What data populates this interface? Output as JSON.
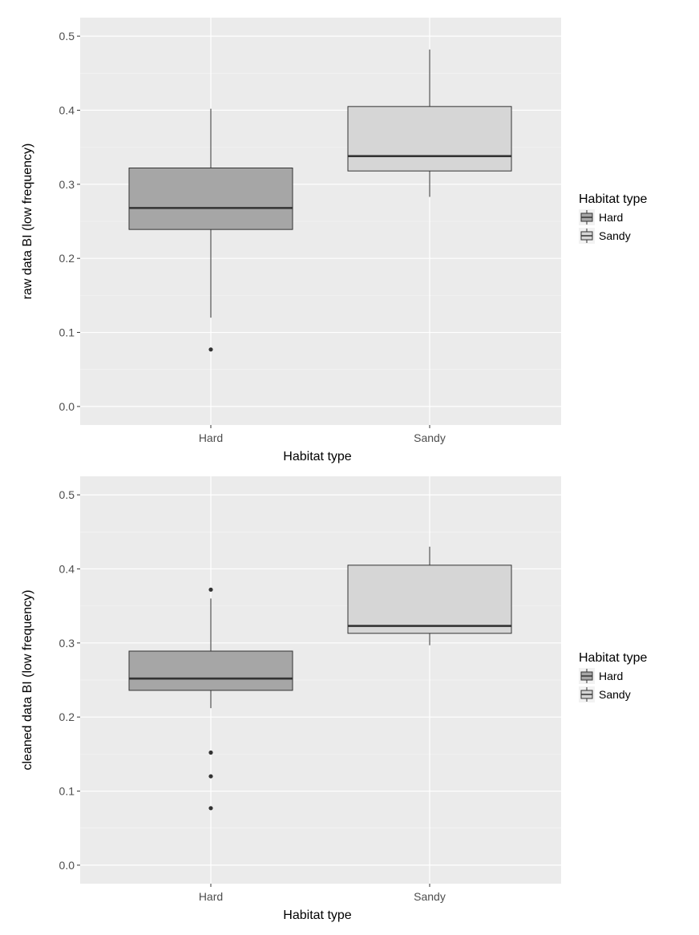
{
  "chart_data": [
    {
      "type": "boxplot",
      "xlabel": "Habitat type",
      "ylabel": "raw data BI (low frequency)",
      "ylim": [
        -0.025,
        0.525
      ],
      "yticks": [
        "0.0",
        "0.1",
        "0.2",
        "0.3",
        "0.4",
        "0.5"
      ],
      "ytick_values": [
        0,
        0.1,
        0.2,
        0.3,
        0.4,
        0.5
      ],
      "categories": [
        "Hard",
        "Sandy"
      ],
      "legend": {
        "title": "Habitat type",
        "position": "right",
        "entries": [
          "Hard",
          "Sandy"
        ]
      },
      "grid": true,
      "boxes": [
        {
          "category": "Hard",
          "fill": "#a6a6a6",
          "whisker_low": 0.12,
          "q1": 0.239,
          "median": 0.268,
          "q3": 0.322,
          "whisker_high": 0.402,
          "outliers": [
            0.077
          ]
        },
        {
          "category": "Sandy",
          "fill": "#d6d6d6",
          "whisker_low": 0.283,
          "q1": 0.318,
          "median": 0.338,
          "q3": 0.405,
          "whisker_high": 0.482,
          "outliers": []
        }
      ]
    },
    {
      "type": "boxplot",
      "xlabel": "Habitat type",
      "ylabel": "cleaned data BI (low frequency)",
      "ylim": [
        -0.025,
        0.525
      ],
      "yticks": [
        "0.0",
        "0.1",
        "0.2",
        "0.3",
        "0.4",
        "0.5"
      ],
      "ytick_values": [
        0,
        0.1,
        0.2,
        0.3,
        0.4,
        0.5
      ],
      "categories": [
        "Hard",
        "Sandy"
      ],
      "legend": {
        "title": "Habitat type",
        "position": "right",
        "entries": [
          "Hard",
          "Sandy"
        ]
      },
      "grid": true,
      "boxes": [
        {
          "category": "Hard",
          "fill": "#a6a6a6",
          "whisker_low": 0.212,
          "q1": 0.236,
          "median": 0.252,
          "q3": 0.289,
          "whisker_high": 0.36,
          "outliers": [
            0.372,
            0.152,
            0.12,
            0.077
          ]
        },
        {
          "category": "Sandy",
          "fill": "#d6d6d6",
          "whisker_low": 0.297,
          "q1": 0.313,
          "median": 0.323,
          "q3": 0.405,
          "whisker_high": 0.43,
          "outliers": []
        }
      ]
    }
  ]
}
